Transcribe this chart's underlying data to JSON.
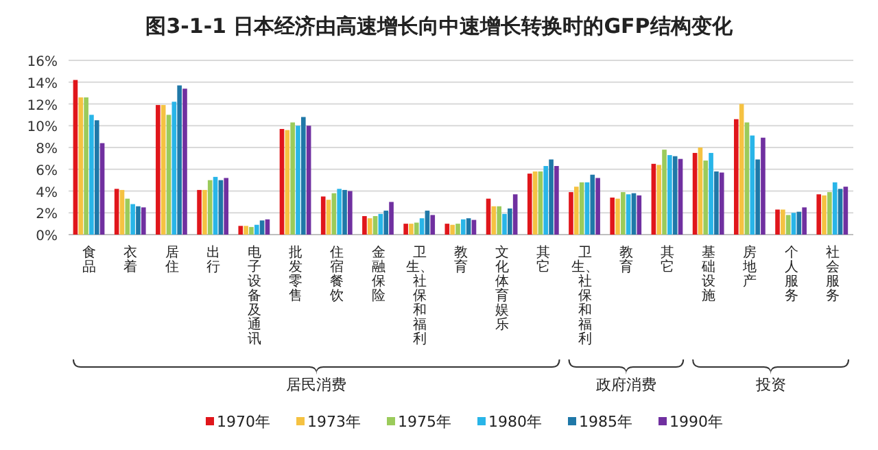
{
  "chart_data": {
    "type": "bar",
    "title": "图3-1-1 日本经济由高速增长向中速增长转换时的GFP结构变化",
    "categories": [
      "食品",
      "衣着",
      "居住",
      "出行",
      "电子设备及通讯",
      "批发零售",
      "住宿餐饮",
      "金融保险",
      "卫生、社保和福利",
      "教育",
      "文化体育娱乐",
      "其它",
      "卫生、社保和福利",
      "教育",
      "其它",
      "基础设施",
      "房地产",
      "个人服务",
      "社会服务"
    ],
    "series": [
      {
        "name": "1970年",
        "color": "#e0161b",
        "values": [
          14.2,
          4.2,
          11.9,
          4.1,
          0.8,
          9.7,
          3.5,
          1.7,
          1.0,
          1.0,
          3.3,
          5.6,
          3.9,
          3.4,
          6.5,
          7.5,
          10.6,
          2.3,
          3.7
        ]
      },
      {
        "name": "1973年",
        "color": "#f5c242",
        "values": [
          12.6,
          4.1,
          11.9,
          4.1,
          0.8,
          9.6,
          3.2,
          1.5,
          1.0,
          0.9,
          2.6,
          5.8,
          4.4,
          3.3,
          6.4,
          8.0,
          12.0,
          2.3,
          3.6
        ]
      },
      {
        "name": "1975年",
        "color": "#9bcb5b",
        "values": [
          12.6,
          3.3,
          11.0,
          5.0,
          0.7,
          10.3,
          3.8,
          1.7,
          1.1,
          1.0,
          2.6,
          5.8,
          4.8,
          3.9,
          7.8,
          6.8,
          10.3,
          1.8,
          3.9
        ]
      },
      {
        "name": "1980年",
        "color": "#29b5e8",
        "values": [
          11.0,
          2.8,
          12.2,
          5.3,
          0.9,
          10.0,
          4.2,
          1.9,
          1.5,
          1.4,
          1.9,
          6.3,
          4.8,
          3.7,
          7.3,
          7.5,
          9.1,
          2.0,
          4.8
        ]
      },
      {
        "name": "1985年",
        "color": "#1f78a8",
        "values": [
          10.5,
          2.6,
          13.7,
          5.0,
          1.3,
          10.8,
          4.1,
          2.2,
          2.2,
          1.5,
          2.4,
          6.9,
          5.5,
          3.8,
          7.2,
          5.8,
          6.9,
          2.1,
          4.2
        ]
      },
      {
        "name": "1990年",
        "color": "#7030a0",
        "values": [
          8.4,
          2.5,
          13.4,
          5.2,
          1.4,
          10.0,
          4.0,
          3.0,
          1.8,
          1.35,
          3.7,
          6.3,
          5.2,
          3.6,
          6.95,
          5.7,
          8.9,
          2.5,
          4.4
        ]
      }
    ],
    "ylim": [
      0,
      16
    ],
    "yticks": [
      {
        "value": 0,
        "label": "0%"
      },
      {
        "value": 2,
        "label": "2%"
      },
      {
        "value": 4,
        "label": "4%"
      },
      {
        "value": 6,
        "label": "6%"
      },
      {
        "value": 8,
        "label": "8%"
      },
      {
        "value": 10,
        "label": "10%"
      },
      {
        "value": 12,
        "label": "12%"
      },
      {
        "value": 14,
        "label": "14%"
      },
      {
        "value": 16,
        "label": "16%"
      }
    ],
    "grid": "y",
    "legend": "bottom",
    "annotations": [
      "居民消费",
      "政府消费",
      "投资"
    ]
  }
}
